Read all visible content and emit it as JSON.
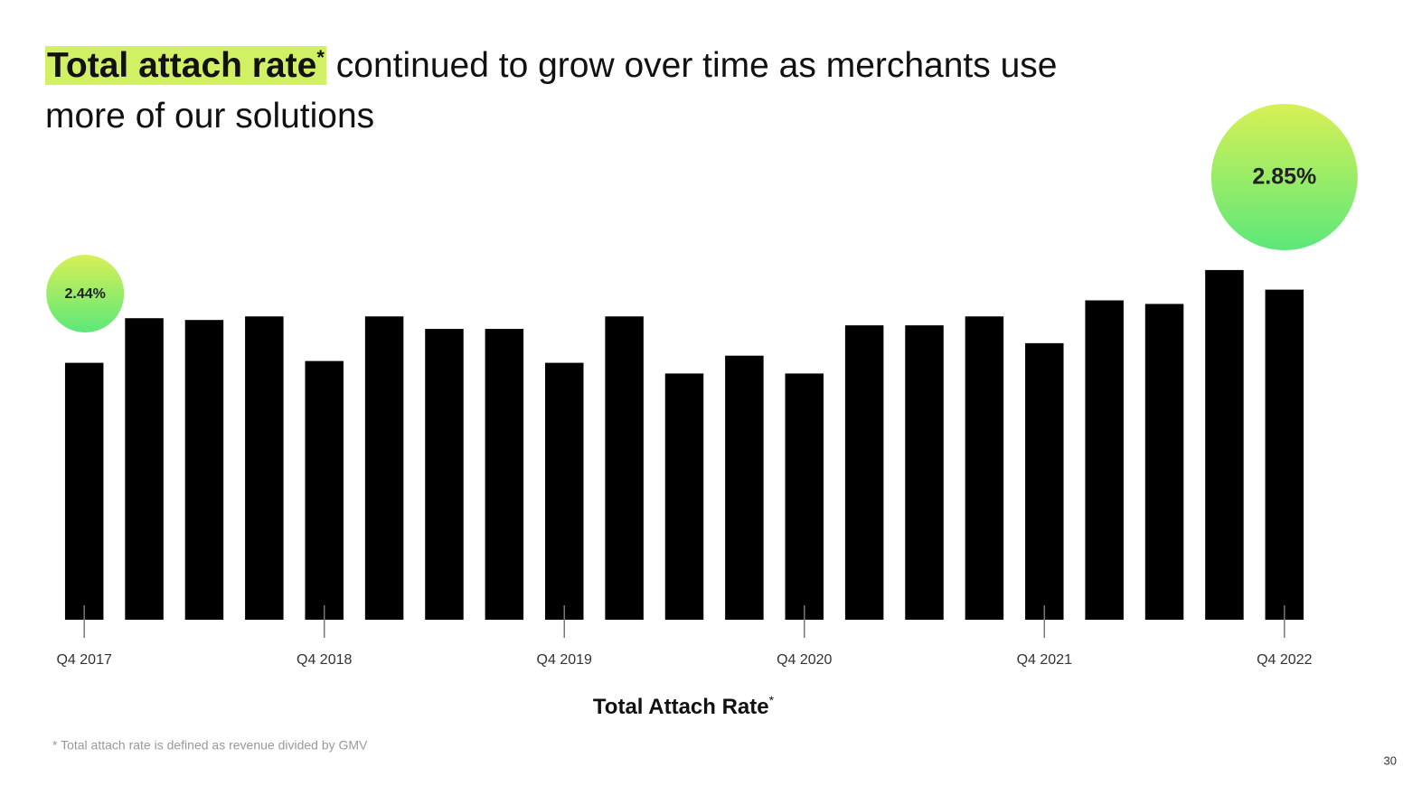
{
  "chart_data": {
    "type": "bar",
    "title_highlight": "Total attach rate",
    "title_asterisk": "*",
    "title_rest": " continued to grow over time as merchants use more of our solutions",
    "x_label": "Total Attach Rate",
    "x_label_asterisk": "*",
    "footnote": "* Total attach rate is defined as revenue divided by GMV",
    "page_number": "30",
    "categories": [
      "Q4 2017",
      null,
      null,
      null,
      "Q4 2018",
      null,
      null,
      null,
      "Q4 2019",
      null,
      null,
      null,
      "Q4 2020",
      null,
      null,
      null,
      "Q4 2021",
      null,
      null,
      null,
      "Q4 2022"
    ],
    "values": [
      2.44,
      2.69,
      2.68,
      2.7,
      2.45,
      2.7,
      2.63,
      2.63,
      2.44,
      2.7,
      2.38,
      2.48,
      2.38,
      2.65,
      2.65,
      2.7,
      2.55,
      2.79,
      2.77,
      2.96,
      2.85
    ],
    "value_labels": [
      "2.44%",
      null,
      null,
      null,
      null,
      null,
      null,
      null,
      null,
      null,
      null,
      null,
      null,
      null,
      null,
      null,
      null,
      null,
      null,
      null,
      "2.85%"
    ],
    "color": "#000000",
    "ylim": [
      1,
      3
    ]
  }
}
